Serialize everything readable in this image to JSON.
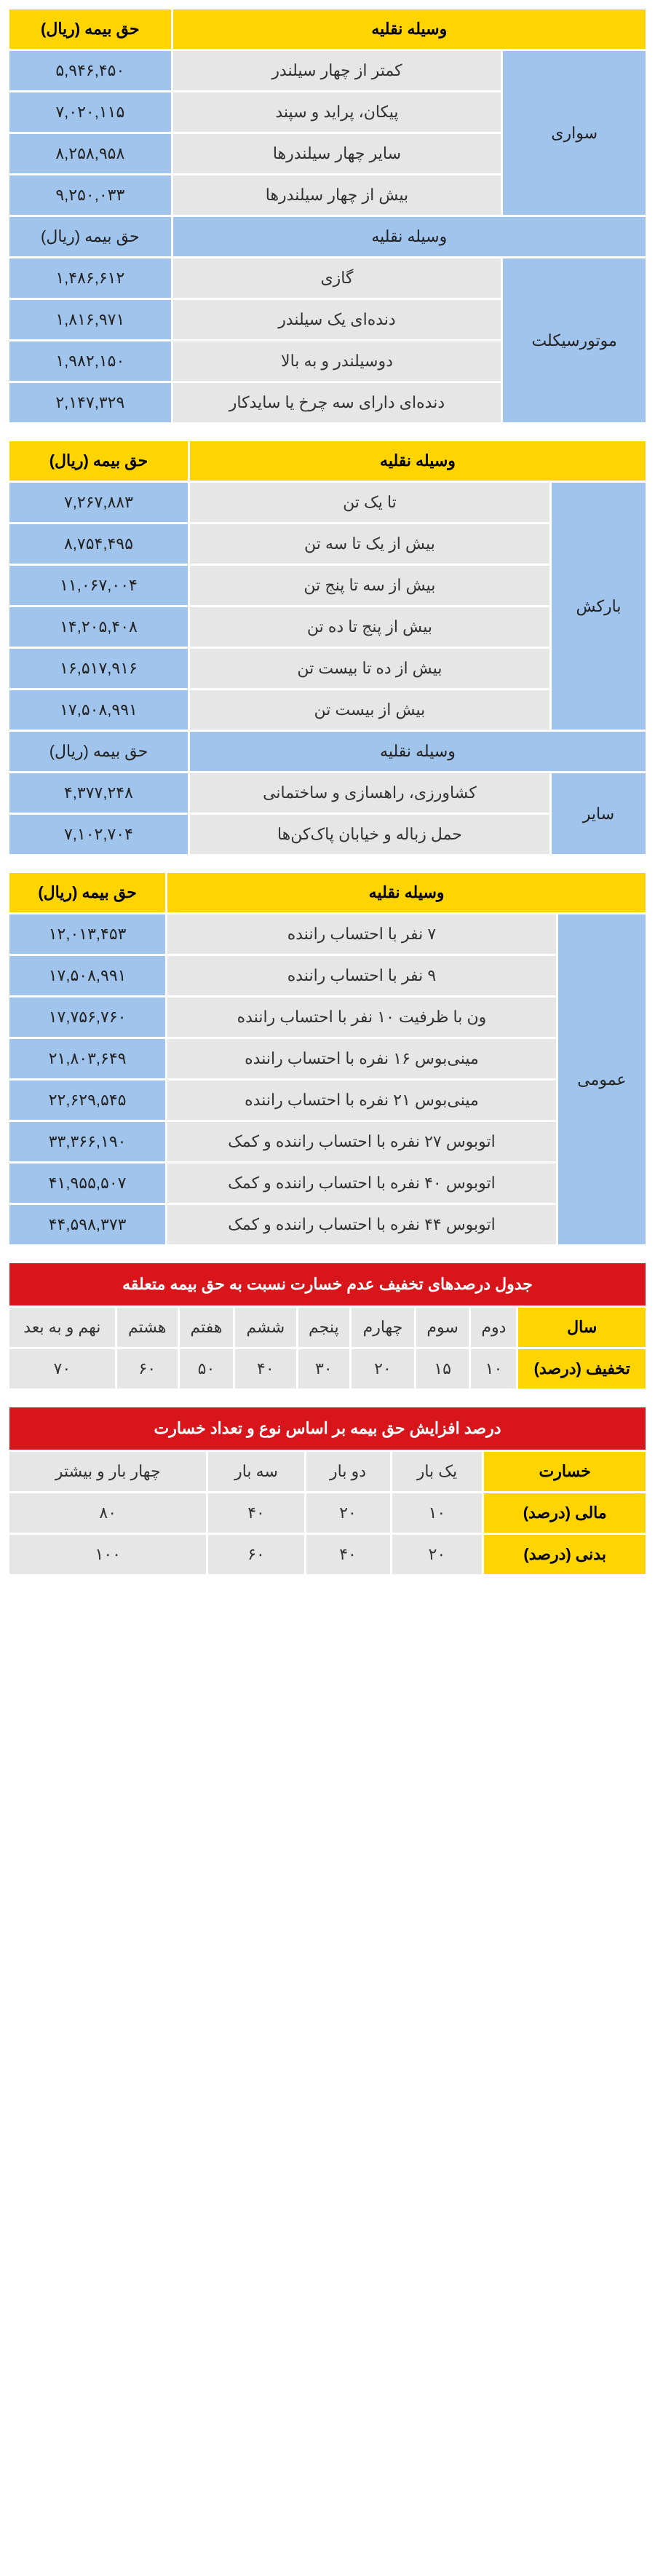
{
  "colors": {
    "yellow": "#ffd400",
    "red": "#d9151c",
    "grey": "#e6e6e6",
    "lightblue": "#a0c4ec",
    "white": "#ffffff"
  },
  "table1": {
    "header_vehicle": "وسیله نقلیه",
    "header_premium": "حق بیمه (ریال)",
    "group1_name": "سواری",
    "group1_rows": [
      {
        "label": "کمتر از چهار سیلندر",
        "value": "۵,۹۴۶,۴۵۰"
      },
      {
        "label": "پیکان، پراید و سپند",
        "value": "۷,۰۲۰,۱۱۵"
      },
      {
        "label": "سایر چهار سیلندرها",
        "value": "۸,۲۵۸,۹۵۸"
      },
      {
        "label": "بیش از چهار سیلندرها",
        "value": "۹,۲۵۰,۰۳۳"
      }
    ],
    "sub_header_vehicle": "وسیله نقلیه",
    "sub_header_premium": "حق بیمه (ریال)",
    "group2_name": "موتورسیکلت",
    "group2_rows": [
      {
        "label": "گازی",
        "value": "۱,۴۸۶,۶۱۲"
      },
      {
        "label": "دنده‌ای یک سیلندر",
        "value": "۱,۸۱۶,۹۷۱"
      },
      {
        "label": "دوسیلندر و به بالا",
        "value": "۱,۹۸۲,۱۵۰"
      },
      {
        "label": "دنده‌ای دارای سه چرخ یا سایدکار",
        "value": "۲,۱۴۷,۳۲۹"
      }
    ]
  },
  "table2": {
    "header_vehicle": "وسیله نقلیه",
    "header_premium": "حق بیمه (ریال)",
    "group1_name": "بارکش",
    "group1_rows": [
      {
        "label": "تا یک تن",
        "value": "۷,۲۶۷,۸۸۳"
      },
      {
        "label": "بیش از یک تا سه تن",
        "value": "۸,۷۵۴,۴۹۵"
      },
      {
        "label": "بیش از سه تا پنج تن",
        "value": "۱۱,۰۶۷,۰۰۴"
      },
      {
        "label": "بیش از پنج تا ده تن",
        "value": "۱۴,۲۰۵,۴۰۸"
      },
      {
        "label": "بیش از ده تا بیست تن",
        "value": "۱۶,۵۱۷,۹۱۶"
      },
      {
        "label": "بیش از بیست تن",
        "value": "۱۷,۵۰۸,۹۹۱"
      }
    ],
    "sub_header_vehicle": "وسیله نقلیه",
    "sub_header_premium": "حق بیمه (ریال)",
    "group2_name": "سایر",
    "group2_rows": [
      {
        "label": "کشاورزی، راهسازی و ساختمانی",
        "value": "۴,۳۷۷,۲۴۸"
      },
      {
        "label": "حمل زباله و خیابان پاک‌کن‌ها",
        "value": "۷,۱۰۲,۷۰۴"
      }
    ]
  },
  "table3": {
    "header_vehicle": "وسیله نقلیه",
    "header_premium": "حق بیمه (ریال)",
    "group1_name": "عمومی",
    "group1_rows": [
      {
        "label": "۷ نفر با احتساب راننده",
        "value": "۱۲,۰۱۳,۴۵۳"
      },
      {
        "label": "۹ نفر با احتساب راننده",
        "value": "۱۷,۵۰۸,۹۹۱"
      },
      {
        "label": "ون با ظرفیت ۱۰ نفر با احتساب راننده",
        "value": "۱۷,۷۵۶,۷۶۰"
      },
      {
        "label": "مینی‌بوس ۱۶ نفره با احتساب راننده",
        "value": "۲۱,۸۰۳,۶۴۹"
      },
      {
        "label": "مینی‌بوس ۲۱ نفره با احتساب راننده",
        "value": "۲۲,۶۲۹,۵۴۵"
      },
      {
        "label": "اتوبوس ۲۷ نفره با احتساب راننده و کمک",
        "value": "۳۳,۳۶۶,۱۹۰"
      },
      {
        "label": "اتوبوس ۴۰ نفره با احتساب راننده و کمک",
        "value": "۴۱,۹۵۵,۵۰۷"
      },
      {
        "label": "اتوبوس ۴۴ نفره با احتساب راننده و کمک",
        "value": "۴۴,۵۹۸,۳۷۳"
      }
    ]
  },
  "table4": {
    "title": "جدول درصدهای تخفیف عدم خسارت نسبت به حق بیمه متعلقه",
    "row_year_label": "سال",
    "row_discount_label": "تخفیف (درصد)",
    "years": [
      "دوم",
      "سوم",
      "چهارم",
      "پنجم",
      "ششم",
      "هفتم",
      "هشتم",
      "نهم و به بعد"
    ],
    "discounts": [
      "۱۰",
      "۱۵",
      "۲۰",
      "۳۰",
      "۴۰",
      "۵۰",
      "۶۰",
      "۷۰"
    ]
  },
  "table5": {
    "title": "درصد افزایش حق بیمه بر اساس نوع و تعداد خسارت",
    "header_damage": "خسارت",
    "cols": [
      "یک بار",
      "دو بار",
      "سه بار",
      "چهار بار و بیشتر"
    ],
    "rows": [
      {
        "label": "مالی (درصد)",
        "values": [
          "۱۰",
          "۲۰",
          "۴۰",
          "۸۰"
        ]
      },
      {
        "label": "بدنی (درصد)",
        "values": [
          "۲۰",
          "۴۰",
          "۶۰",
          "۱۰۰"
        ]
      }
    ]
  }
}
